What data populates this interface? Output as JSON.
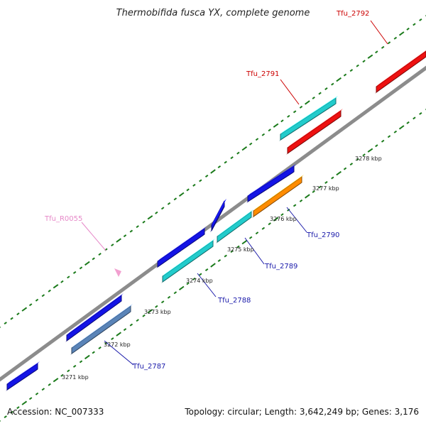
{
  "title": "Thermobifida fusca YX, complete genome",
  "footer": {
    "accession": "Accession: NC_007333",
    "summary": "Topology: circular; Length: 3,642,249 bp; Genes: 3,176"
  },
  "colors": {
    "backbone": "#8c8c8c",
    "tick": "#1a7a1a",
    "gene_blue": "#1414e6",
    "gene_cyan": "#22cccc",
    "gene_red": "#ee1111",
    "gene_orange": "#ff8c00",
    "gene_steel": "#5a84b8",
    "gene_pink": "#f2a0d0",
    "label_blue": "#1a1aaa",
    "label_red": "#cc0000",
    "label_pink": "#e688c8"
  },
  "scale_labels": [
    "3271 kbp",
    "3272 kbp",
    "3273 kbp",
    "3274 kbp",
    "3275 kbp",
    "3276 kbp",
    "3277 kbp",
    "3278 kbp"
  ],
  "genes": [
    {
      "type": "blue"
    },
    {
      "type": "blue"
    },
    {
      "type": "steel"
    },
    {
      "type": "blue"
    },
    {
      "type": "cyan"
    },
    {
      "type": "blue"
    },
    {
      "type": "cyan"
    },
    {
      "type": "blue"
    },
    {
      "type": "orange"
    },
    {
      "type": "cyan"
    },
    {
      "type": "red"
    },
    {
      "type": "red"
    },
    {
      "type": "pink"
    }
  ],
  "gene_labels": [
    {
      "text": "Tfu_2787",
      "color": "blue"
    },
    {
      "text": "Tfu_2788",
      "color": "blue"
    },
    {
      "text": "Tfu_2789",
      "color": "blue"
    },
    {
      "text": "Tfu_2790",
      "color": "blue"
    },
    {
      "text": "Tfu_2791",
      "color": "red"
    },
    {
      "text": "Tfu_2792",
      "color": "red"
    },
    {
      "text": "Tfu_R0055",
      "color": "pink"
    }
  ]
}
